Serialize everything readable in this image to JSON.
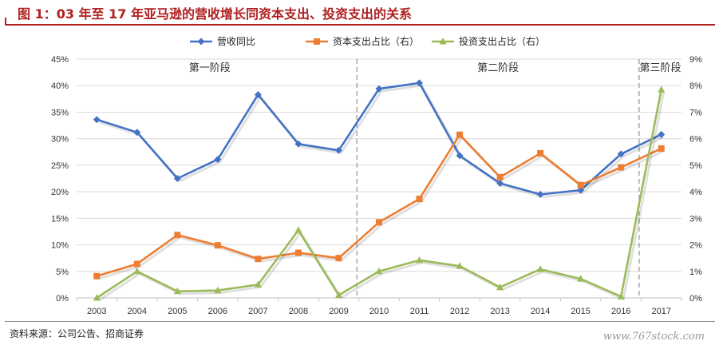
{
  "header": {
    "title": "图 1：03 年至 17 年亚马逊的营收增长同资本支出、投资支出的关系"
  },
  "footer": {
    "source": "资料来源：公司公告、招商证券",
    "watermark": "www.767stock.com"
  },
  "colors": {
    "title": "#b01f1f",
    "revenue": "#4472c4",
    "capex": "#ed7d31",
    "invest": "#9bbb59",
    "grid": "#d9d9d9",
    "divider": "#a6a6a6"
  },
  "chart_data": {
    "type": "line",
    "title": "",
    "x": [
      "2003",
      "2004",
      "2005",
      "2006",
      "2007",
      "2008",
      "2009",
      "2010",
      "2011",
      "2012",
      "2013",
      "2014",
      "2015",
      "2016",
      "2017"
    ],
    "y_left": {
      "min": 0,
      "max": 45,
      "step": 5,
      "ticks": [
        "0%",
        "5%",
        "10%",
        "15%",
        "20%",
        "25%",
        "30%",
        "35%",
        "40%",
        "45%"
      ]
    },
    "y_right": {
      "min": 0,
      "max": 9,
      "step": 1,
      "ticks": [
        "0%",
        "1%",
        "2%",
        "3%",
        "4%",
        "5%",
        "6%",
        "7%",
        "8%",
        "9%"
      ]
    },
    "grid": true,
    "legend_position": "top",
    "series": [
      {
        "name": "营收同比",
        "axis": "left",
        "marker": "diamond",
        "values": [
          33.6,
          31.2,
          22.5,
          26.1,
          38.3,
          29.0,
          27.8,
          39.4,
          40.5,
          26.8,
          21.6,
          19.5,
          20.3,
          27.1,
          30.8
        ]
      },
      {
        "name": "资本支出占比（右）",
        "axis": "right",
        "marker": "square",
        "values": [
          0.82,
          1.28,
          2.37,
          1.98,
          1.47,
          1.7,
          1.5,
          2.85,
          3.73,
          6.15,
          4.55,
          5.45,
          4.25,
          4.92,
          5.63
        ]
      },
      {
        "name": "投资支出占比（右）",
        "axis": "right",
        "marker": "triangle",
        "values": [
          0.0,
          1.0,
          0.25,
          0.28,
          0.5,
          2.55,
          0.1,
          1.0,
          1.42,
          1.2,
          0.4,
          1.08,
          0.72,
          0.05,
          7.85
        ]
      }
    ],
    "phases": [
      {
        "label": "第一阶段"
      },
      {
        "label": "第二阶段"
      },
      {
        "label": "第三阶段"
      }
    ],
    "phase_dividers_after": [
      "2009",
      "2016"
    ]
  }
}
